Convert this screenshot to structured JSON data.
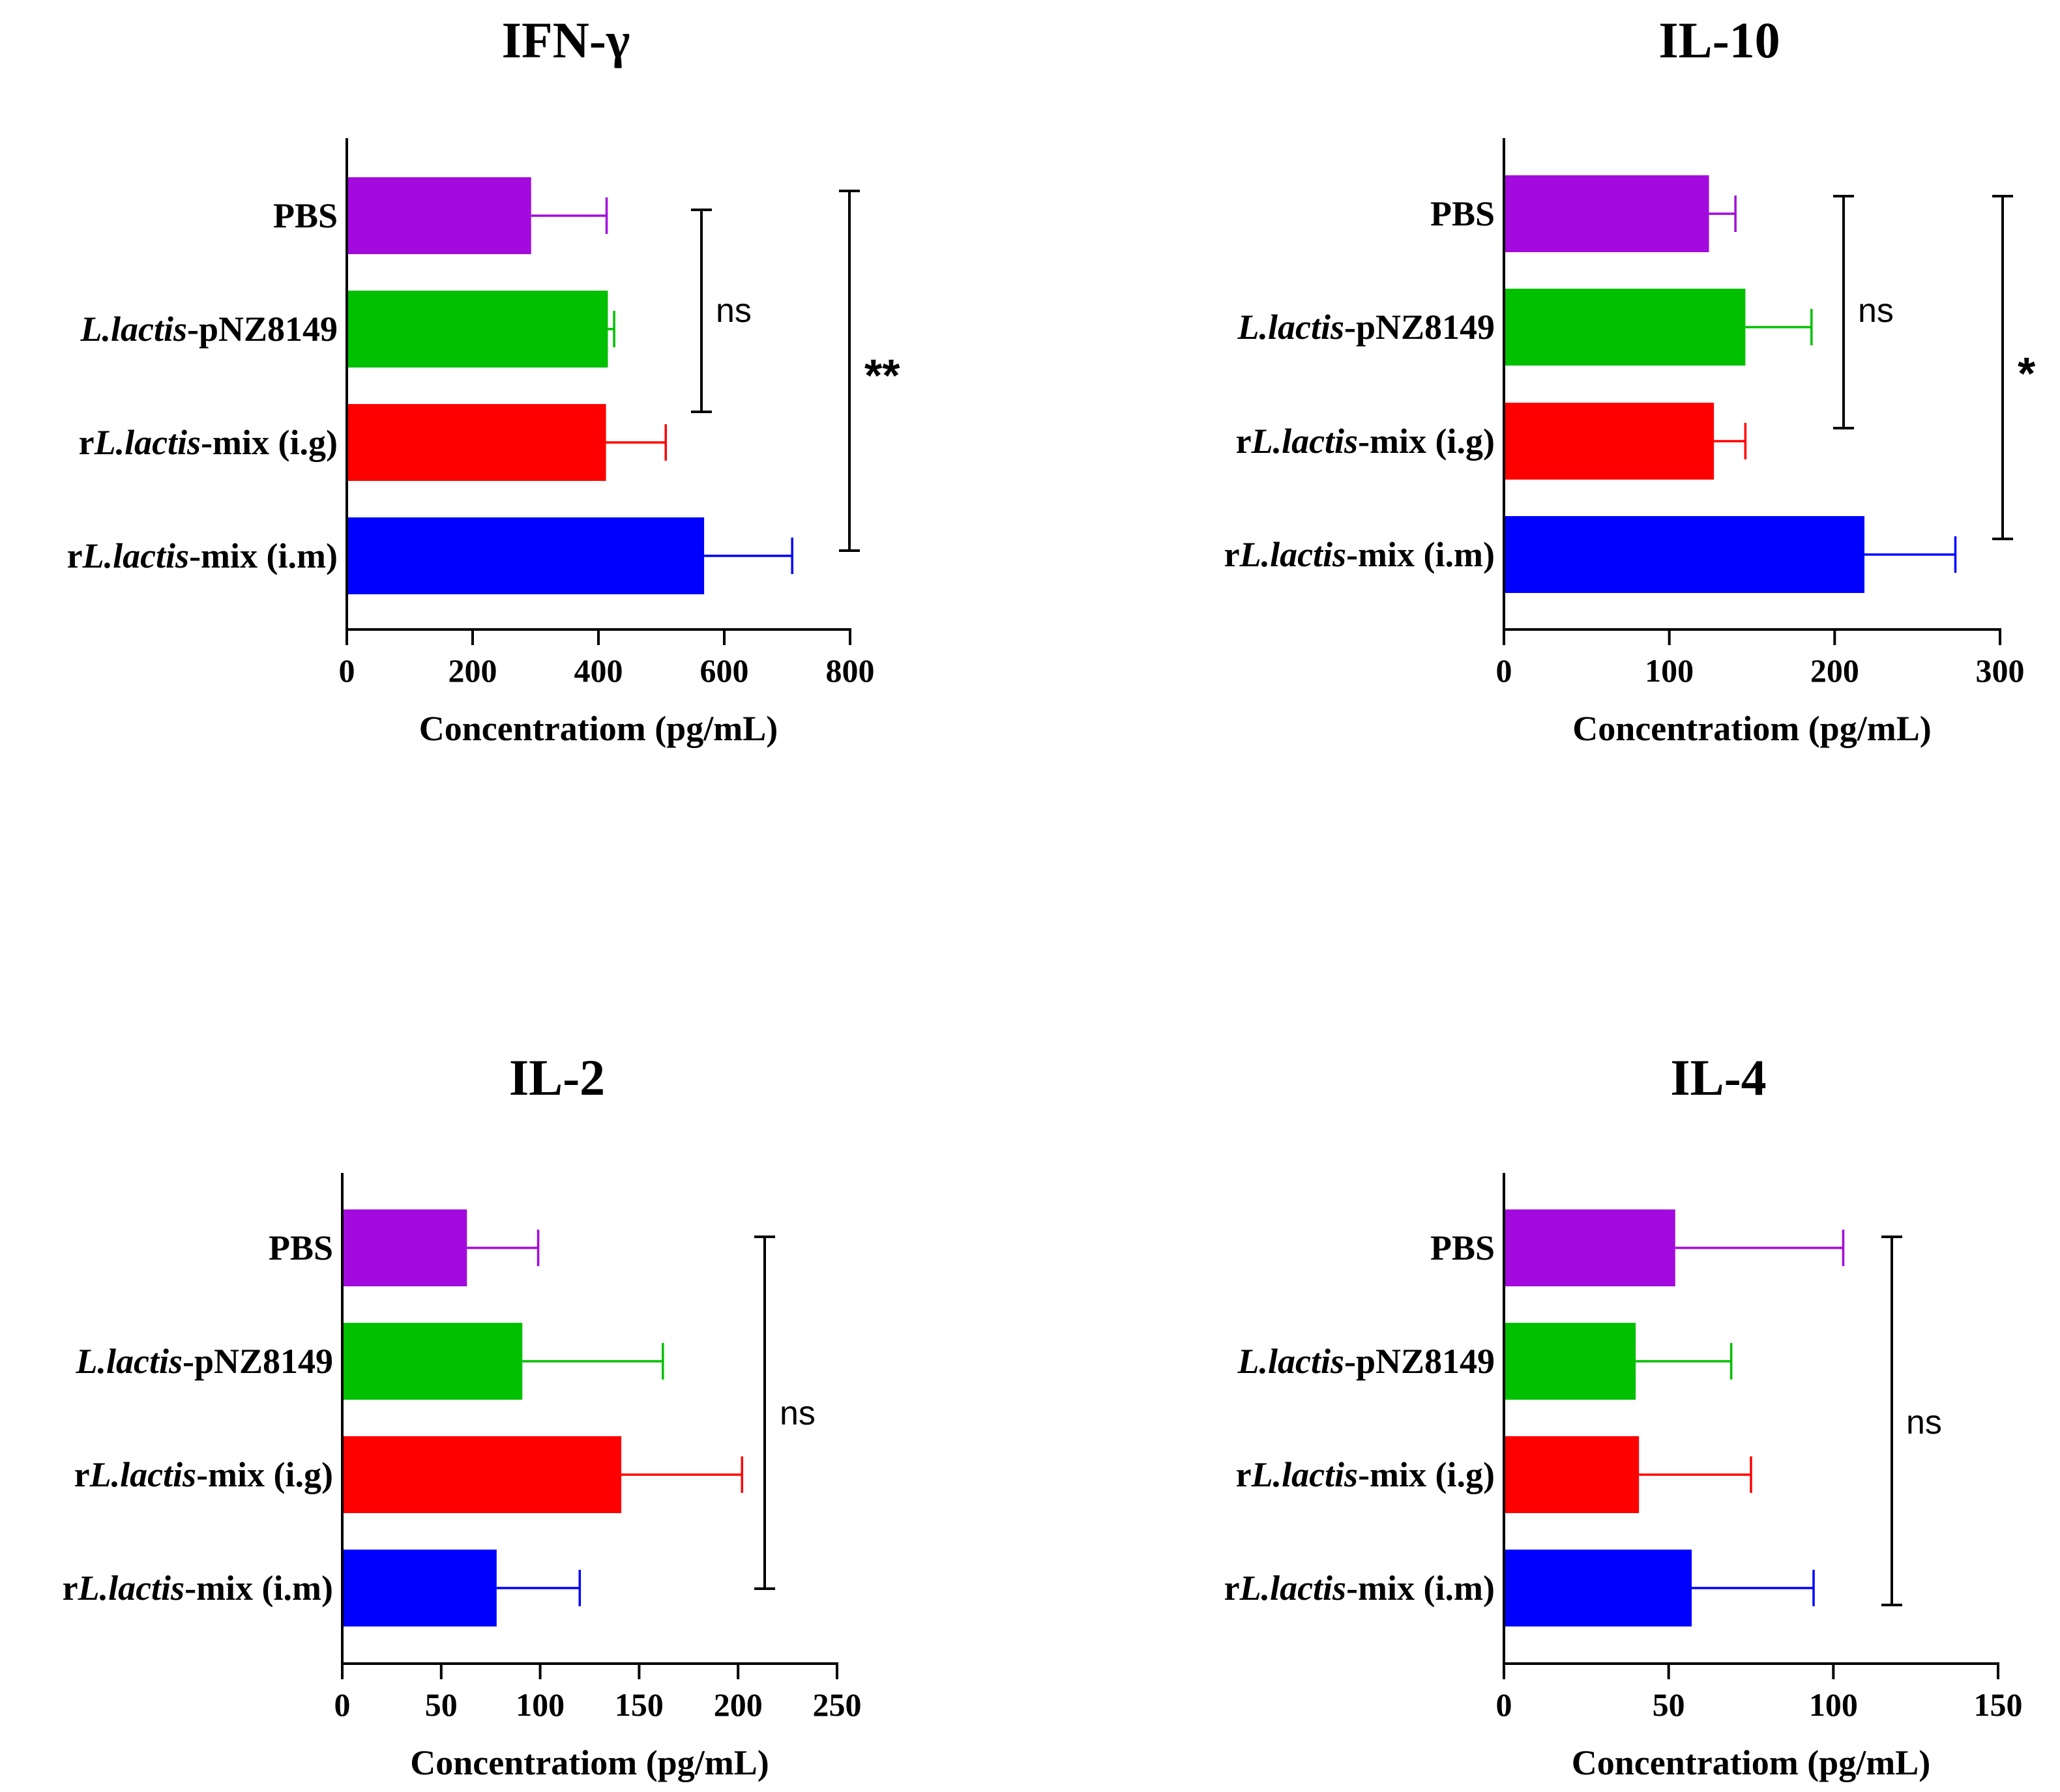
{
  "colors": {
    "PBS": "#a30ade",
    "pNZ8149": "#00c000",
    "ig": "#ff0000",
    "im": "#0000ff"
  },
  "category_parts": [
    [
      {
        "t": "PBS",
        "i": false
      }
    ],
    [
      {
        "t": "L.lactis",
        "i": true
      },
      {
        "t": "-pNZ8149",
        "i": false
      }
    ],
    [
      {
        "t": "r",
        "i": false
      },
      {
        "t": "L.lactis",
        "i": true
      },
      {
        "t": "-mix (i.g)",
        "i": false
      }
    ],
    [
      {
        "t": "r",
        "i": false
      },
      {
        "t": "L.lactis",
        "i": true
      },
      {
        "t": "-mix (i.m)",
        "i": false
      }
    ]
  ],
  "chart_data": [
    {
      "type": "bar",
      "orientation": "horizontal",
      "title": "IFN-γ",
      "xlabel": "Concentratiom (pg/mL)",
      "categories": [
        "PBS",
        "L.lactis-pNZ8149",
        "rL.lactis-mix (i.g)",
        "rL.lactis-mix (i.m)"
      ],
      "values": [
        293,
        415,
        412,
        568
      ],
      "errors": [
        120,
        10,
        95,
        140
      ],
      "xlim": [
        0,
        800
      ],
      "xticks": [
        0,
        200,
        400,
        600,
        800
      ],
      "significance": [
        {
          "label": "ns",
          "from": 0,
          "to": 2
        },
        {
          "label": "**",
          "from": 0,
          "to": 3
        }
      ]
    },
    {
      "type": "bar",
      "orientation": "horizontal",
      "title": "IL-10",
      "xlabel": "Concentratiom (pg/mL)",
      "categories": [
        "PBS",
        "L.lactis-pNZ8149",
        "rL.lactis-mix (i.g)",
        "rL.lactis-mix (i.m)"
      ],
      "values": [
        124,
        146,
        127,
        218
      ],
      "errors": [
        16,
        40,
        19,
        55
      ],
      "xlim": [
        0,
        300
      ],
      "xticks": [
        0,
        100,
        200,
        300
      ],
      "significance": [
        {
          "label": "ns",
          "from": 0,
          "to": 2
        },
        {
          "label": "*",
          "from": 0,
          "to": 3
        }
      ]
    },
    {
      "type": "bar",
      "orientation": "horizontal",
      "title": "IL-2",
      "xlabel": "Concentratiom (pg/mL)",
      "categories": [
        "PBS",
        "L.lactis-pNZ8149",
        "rL.lactis-mix (i.g)",
        "rL.lactis-mix (i.m)"
      ],
      "values": [
        63,
        91,
        141,
        78
      ],
      "errors": [
        36,
        71,
        61,
        42
      ],
      "xlim": [
        0,
        250
      ],
      "xticks": [
        0,
        50,
        100,
        150,
        200,
        250
      ],
      "significance": [
        {
          "label": "ns",
          "from": 0,
          "to": 3
        }
      ]
    },
    {
      "type": "bar",
      "orientation": "horizontal",
      "title": "IL-4",
      "xlabel": "Concentratiom (pg/mL)",
      "categories": [
        "PBS",
        "L.lactis-pNZ8149",
        "rL.lactis-mix (i.g)",
        "rL.lactis-mix (i.m)"
      ],
      "values": [
        52,
        40,
        41,
        57
      ],
      "errors": [
        51,
        29,
        34,
        37
      ],
      "xlim": [
        0,
        150
      ],
      "xticks": [
        0,
        50,
        100,
        150
      ],
      "significance": [
        {
          "label": "ns",
          "from": 0,
          "to": 3
        }
      ]
    }
  ]
}
